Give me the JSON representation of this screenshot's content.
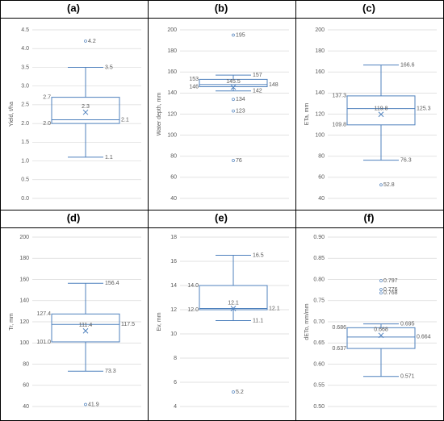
{
  "chart_data": [
    {
      "type": "box",
      "title": "(a)",
      "ylabel": "Yield, t/ha",
      "ylim": [
        0,
        4.5
      ],
      "grid": true,
      "color": "#4f81bd",
      "yticks": [
        {
          "value": 0,
          "label": "0.0"
        },
        0.5,
        {
          "value": 1,
          "label": "1.0"
        },
        1.5,
        {
          "value": 2,
          "label": "2.0"
        },
        2.5,
        {
          "value": 3,
          "label": "3.0"
        },
        3.5,
        {
          "value": 4,
          "label": "4.0"
        },
        4.5
      ],
      "min": 1.1,
      "q1": 2,
      "median": 2.1,
      "q3": 2.7,
      "max": 3.5,
      "mean": 2.3,
      "outliers": [
        4.2
      ],
      "value_labels": {
        "q1": "2.0"
      }
    },
    {
      "type": "box",
      "title": "(b)",
      "ylabel": "Water depth, mm",
      "ylim": [
        40,
        200
      ],
      "grid": true,
      "color": "#4f81bd",
      "yticks": [
        40,
        60,
        80,
        100,
        120,
        140,
        160,
        180,
        200
      ],
      "min": 142,
      "q1": 146,
      "median": 148,
      "q3": 153,
      "max": 157,
      "mean": 145.5,
      "outliers": [
        195,
        134,
        123,
        76
      ]
    },
    {
      "type": "box",
      "title": "(c)",
      "ylabel": "ETa, mm",
      "ylim": [
        40,
        200
      ],
      "grid": true,
      "color": "#4f81bd",
      "yticks": [
        40,
        60,
        80,
        100,
        120,
        140,
        160,
        180,
        200
      ],
      "min": 76.3,
      "q1": 109.8,
      "median": 125.3,
      "q3": 137.3,
      "max": 166.6,
      "mean": 119.8,
      "outliers": [
        52.8
      ]
    },
    {
      "type": "box",
      "title": "(d)",
      "ylabel": "Tr, mm",
      "ylim": [
        40,
        200
      ],
      "grid": true,
      "color": "#4f81bd",
      "yticks": [
        40,
        60,
        80,
        100,
        120,
        140,
        160,
        180,
        200
      ],
      "min": 73.3,
      "q1": 101,
      "median": 117.5,
      "q3": 127.4,
      "max": 156.4,
      "mean": 111.4,
      "outliers": [
        41.9
      ],
      "value_labels": {
        "q1": "101.0"
      }
    },
    {
      "type": "box",
      "title": "(e)",
      "ylabel": "Ev, mm",
      "ylim": [
        4,
        18
      ],
      "grid": true,
      "color": "#4f81bd",
      "yticks": [
        4,
        6,
        8,
        10,
        12,
        14,
        16,
        18
      ],
      "min": 11.1,
      "q1": 12,
      "median": 12.1,
      "q3": 14,
      "max": 16.5,
      "mean": 12.1,
      "outliers": [
        5.2
      ],
      "value_labels": {
        "q1": "12.0",
        "q3": "14.0"
      }
    },
    {
      "type": "box",
      "title": "(f)",
      "ylabel": "dETo, mm/mm",
      "ylim": [
        0.5,
        0.9
      ],
      "grid": true,
      "color": "#4f81bd",
      "yticks": [
        {
          "value": 0.5,
          "label": "0.50"
        },
        {
          "value": 0.55,
          "label": "0.55"
        },
        {
          "value": 0.6,
          "label": "0.60"
        },
        {
          "value": 0.65,
          "label": "0.65"
        },
        {
          "value": 0.7,
          "label": "0.70"
        },
        {
          "value": 0.75,
          "label": "0.75"
        },
        {
          "value": 0.8,
          "label": "0.80"
        },
        {
          "value": 0.85,
          "label": "0.85"
        },
        {
          "value": 0.9,
          "label": "0.90"
        }
      ],
      "min": 0.571,
      "q1": 0.637,
      "median": 0.664,
      "q3": 0.686,
      "max": 0.695,
      "mean": 0.668,
      "outliers": [
        0.797,
        0.776,
        0.768
      ]
    }
  ]
}
